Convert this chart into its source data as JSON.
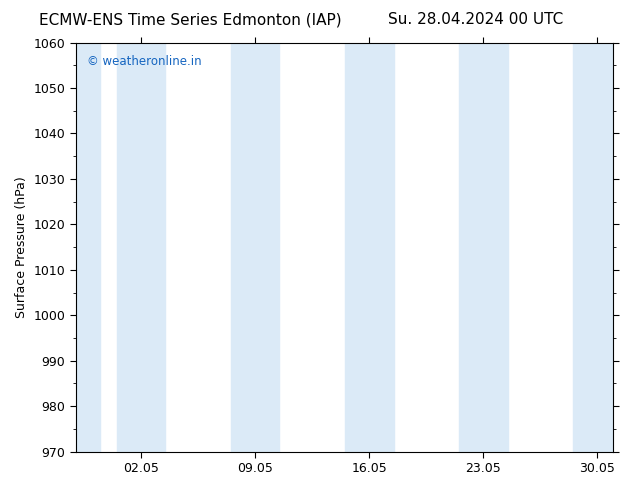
{
  "title_left": "ECMW-ENS Time Series Edmonton (IAP)",
  "title_right": "Su. 28.04.2024 00 UTC",
  "ylabel": "Surface Pressure (hPa)",
  "ylim": [
    970,
    1060
  ],
  "yticks": [
    970,
    980,
    990,
    1000,
    1010,
    1020,
    1030,
    1040,
    1050,
    1060
  ],
  "xtick_labels": [
    "02.05",
    "09.05",
    "16.05",
    "23.05",
    "30.05"
  ],
  "watermark": "© weatheronline.in",
  "watermark_color": "#1565C0",
  "bg_color": "#ffffff",
  "plot_bg_color": "#ffffff",
  "band_color": "#dbeaf7",
  "title_fontsize": 11,
  "axis_fontsize": 9,
  "tick_fontsize": 9
}
